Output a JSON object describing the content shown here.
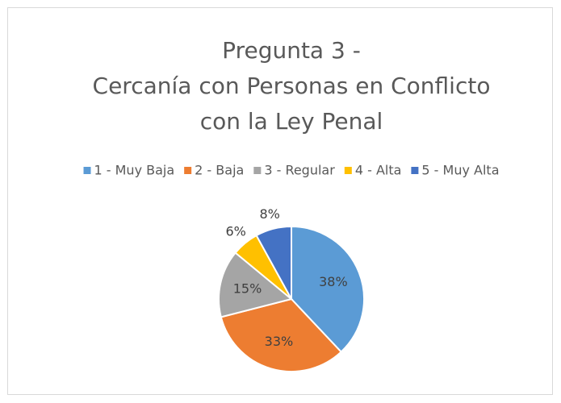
{
  "chart_data": {
    "type": "pie",
    "title": [
      "Pregunta 3 -",
      "Cercanía con Personas en Conflicto",
      "con la Ley Penal"
    ],
    "categories": [
      "1 - Muy Baja",
      "2 - Baja",
      "3 - Regular",
      "4 - Alta",
      "5 - Muy Alta"
    ],
    "values": [
      38,
      33,
      15,
      6,
      8
    ],
    "value_labels": [
      "38%",
      "33%",
      "15%",
      "6%",
      "8%"
    ],
    "colors": [
      "#5b9bd5",
      "#ed7d31",
      "#a5a5a5",
      "#ffc000",
      "#4472c4"
    ],
    "legend": "top"
  }
}
